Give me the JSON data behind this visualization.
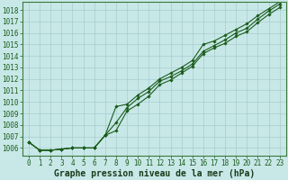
{
  "background_color": "#c8e8e8",
  "plot_bg_color": "#c8e8e8",
  "line_color": "#1a5c1a",
  "grid_color": "#a8cccc",
  "x_values": [
    0,
    1,
    2,
    3,
    4,
    5,
    6,
    7,
    8,
    9,
    10,
    11,
    12,
    13,
    14,
    15,
    16,
    17,
    18,
    19,
    20,
    21,
    22,
    23
  ],
  "series1": [
    1006.5,
    1005.8,
    1005.8,
    1005.9,
    1006.0,
    1006.0,
    1006.0,
    1007.1,
    1007.5,
    1009.2,
    1009.8,
    1010.5,
    1011.5,
    1011.9,
    1012.5,
    1013.1,
    1014.2,
    1014.7,
    1015.1,
    1015.7,
    1016.1,
    1016.9,
    1017.6,
    1018.2
  ],
  "series2": [
    1006.5,
    1005.8,
    1005.8,
    1005.9,
    1006.0,
    1006.0,
    1006.0,
    1007.1,
    1008.2,
    1009.5,
    1010.3,
    1010.9,
    1011.8,
    1012.2,
    1012.7,
    1013.3,
    1014.4,
    1014.9,
    1015.4,
    1016.0,
    1016.4,
    1017.2,
    1017.9,
    1018.5
  ],
  "series3": [
    1006.5,
    1005.8,
    1005.8,
    1005.9,
    1006.0,
    1006.0,
    1006.0,
    1007.1,
    1009.6,
    1009.8,
    1010.6,
    1011.2,
    1012.0,
    1012.5,
    1013.0,
    1013.6,
    1015.0,
    1015.3,
    1015.8,
    1016.3,
    1016.8,
    1017.5,
    1018.1,
    1018.7
  ],
  "ylim_min": 1005.3,
  "ylim_max": 1018.7,
  "yticks": [
    1006,
    1007,
    1008,
    1009,
    1010,
    1011,
    1012,
    1013,
    1014,
    1015,
    1016,
    1017,
    1018
  ],
  "xlabel": "Graphe pression niveau de la mer (hPa)",
  "marker": "D",
  "marker_size": 1.8,
  "line_width": 0.8,
  "tick_fontsize": 5.5,
  "xlabel_fontsize": 7.0
}
